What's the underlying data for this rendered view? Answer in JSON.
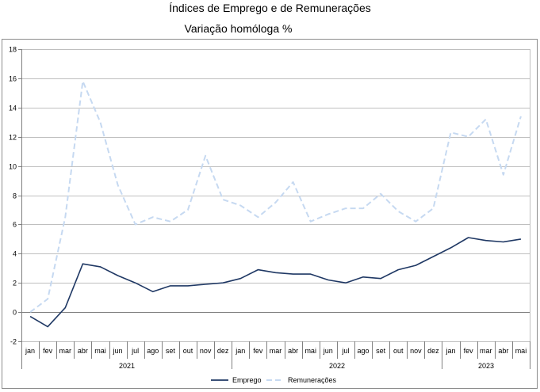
{
  "chart_data": {
    "type": "line",
    "title": "Índices de Emprego e de Remunerações",
    "subtitle": "Variação homóloga %",
    "xlabel": "",
    "ylabel": "",
    "ylim": [
      -2,
      18
    ],
    "yticks": [
      -2,
      0,
      2,
      4,
      6,
      8,
      10,
      12,
      14,
      16,
      18
    ],
    "grid": "horizontal",
    "legend": "bottom-center",
    "categories": [
      "jan",
      "fev",
      "mar",
      "abr",
      "mai",
      "jun",
      "jul",
      "ago",
      "set",
      "out",
      "nov",
      "dez",
      "jan",
      "fev",
      "mar",
      "abr",
      "mai",
      "jun",
      "jul",
      "ago",
      "set",
      "out",
      "nov",
      "dez",
      "jan",
      "fev",
      "mar",
      "abr",
      "mai"
    ],
    "years": [
      {
        "label": "2021",
        "start": 0,
        "end": 11
      },
      {
        "label": "2022",
        "start": 12,
        "end": 23
      },
      {
        "label": "2023",
        "start": 24,
        "end": 28
      }
    ],
    "series": [
      {
        "name": "Emprego",
        "color": "#1f3864",
        "dash": "solid",
        "values": [
          -0.3,
          -1.0,
          0.3,
          3.3,
          3.1,
          2.5,
          2.0,
          1.4,
          1.8,
          1.8,
          1.9,
          2.0,
          2.3,
          2.9,
          2.7,
          2.6,
          2.6,
          2.2,
          2.0,
          2.4,
          2.3,
          2.9,
          3.2,
          3.8,
          4.4,
          5.1,
          4.9,
          4.8,
          5.0
        ]
      },
      {
        "name": "Remunerações",
        "color": "#c6d9f1",
        "dash": "dashed",
        "values": [
          0.0,
          0.9,
          6.5,
          15.8,
          13.0,
          8.7,
          6.0,
          6.5,
          6.2,
          7.0,
          10.7,
          7.7,
          7.3,
          6.5,
          7.5,
          8.9,
          6.2,
          6.7,
          7.1,
          7.1,
          8.1,
          6.9,
          6.2,
          7.1,
          12.3,
          12.0,
          13.2,
          9.4,
          13.4
        ]
      }
    ]
  }
}
